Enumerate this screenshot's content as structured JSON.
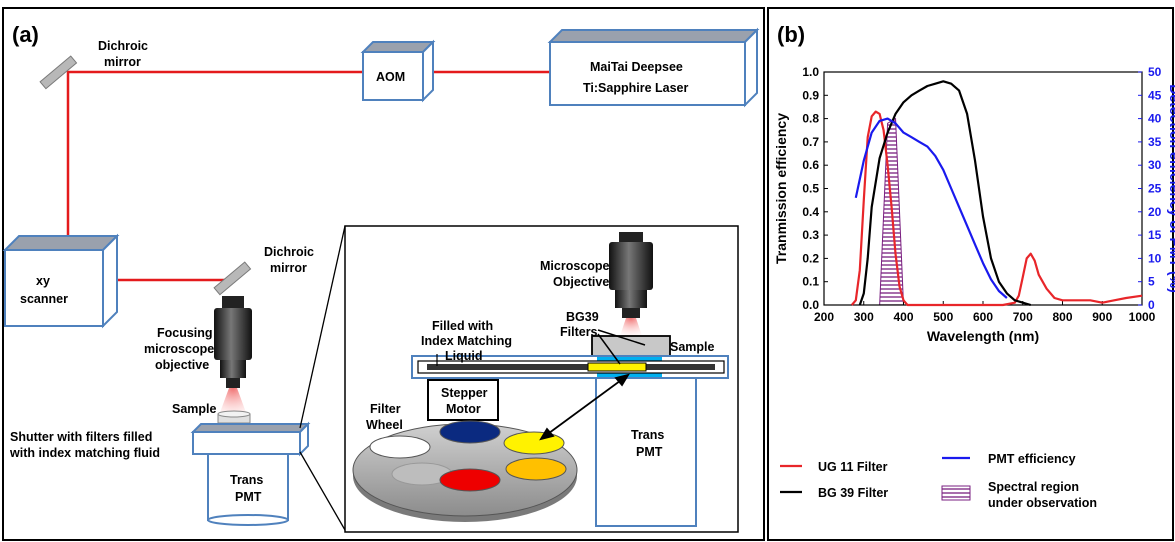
{
  "panel_a": {
    "title": "(a)",
    "labels": {
      "dichroic_top_1": "Dichroic",
      "dichroic_top_2": "mirror",
      "aom": "AOM",
      "laser_1": "MaiTai Deepsee",
      "laser_2": "Ti:Sapphire Laser",
      "xy_1": "xy",
      "xy_2": "scanner",
      "dichroic_mid_1": "Dichroic",
      "dichroic_mid_2": "mirror",
      "focusing_1": "Focusing",
      "focusing_2": "microscope",
      "focusing_3": "objective",
      "sample_left": "Sample",
      "shutter_1": "Shutter with filters filled",
      "shutter_2": "with index matching fluid",
      "trans_left_1": "Trans",
      "trans_left_2": "PMT",
      "micro_obj_1": "Microscope",
      "micro_obj_2": "Objective",
      "filled_1": "Filled with",
      "filled_2": "Index Matching",
      "filled_3": "Liquid",
      "bg39_1": "BG39",
      "bg39_2": "Filters",
      "sample_inset": "Sample",
      "stepper_1": "Stepper",
      "stepper_2": "Motor",
      "filter_wheel_1": "Filter",
      "filter_wheel_2": "Wheel",
      "trans_inset_1": "Trans",
      "trans_inset_2": "PMT"
    }
  },
  "panel_b": {
    "title": "(b)",
    "legend": {
      "ug11": "UG 11 Filter",
      "bg39": "BG 39 Filter",
      "pmt": "PMT efficiency",
      "region_1": "Spectral region",
      "region_2": "under observation"
    }
  },
  "colors": {
    "beam": "#e41a1c",
    "box_edge": "#4f81bd",
    "ug11": "#e8262a",
    "bg39": "#000000",
    "pmt": "#1a1aee",
    "region": "#7a1f80",
    "wheel_blue": "#0b2a80",
    "wheel_yellow": "#fff200",
    "wheel_red": "#ee0000",
    "wheel_orange": "#ffc000",
    "inset_blue": "#00b0f0"
  },
  "chart_data": {
    "type": "line",
    "xlabel": "Wavelength (nm)",
    "ylabel": "Tranmission efficiency",
    "y2label": "Detection efficiency of PMT (%)",
    "xlim": [
      200,
      1000
    ],
    "ylim": [
      0,
      1.0
    ],
    "y2lim": [
      0,
      50
    ],
    "xticks": [
      200,
      300,
      400,
      500,
      600,
      700,
      800,
      900,
      1000
    ],
    "yticks": [
      "0.0",
      "0.1",
      "0.2",
      "0.3",
      "0.4",
      "0.5",
      "0.6",
      "0.7",
      "0.8",
      "0.9",
      "1.0"
    ],
    "y2ticks": [
      0,
      5,
      10,
      15,
      20,
      25,
      30,
      35,
      40,
      45,
      50
    ],
    "series": [
      {
        "name": "UG 11 Filter",
        "axis": "left",
        "x": [
          270,
          280,
          290,
          300,
          310,
          320,
          330,
          340,
          350,
          360,
          370,
          380,
          390,
          400,
          410,
          600,
          650,
          680,
          690,
          700,
          710,
          720,
          730,
          740,
          760,
          780,
          800,
          830,
          870,
          900,
          930,
          960,
          1000
        ],
        "y": [
          0.0,
          0.02,
          0.15,
          0.45,
          0.72,
          0.81,
          0.83,
          0.82,
          0.75,
          0.6,
          0.42,
          0.22,
          0.08,
          0.02,
          0.0,
          0.0,
          0.0,
          0.01,
          0.04,
          0.12,
          0.2,
          0.22,
          0.19,
          0.13,
          0.07,
          0.03,
          0.02,
          0.02,
          0.02,
          0.01,
          0.02,
          0.03,
          0.04
        ]
      },
      {
        "name": "BG 39 Filter",
        "axis": "left",
        "x": [
          290,
          300,
          310,
          320,
          340,
          360,
          380,
          400,
          420,
          440,
          460,
          480,
          500,
          520,
          540,
          560,
          580,
          600,
          620,
          640,
          660,
          680,
          700,
          720
        ],
        "y": [
          0.0,
          0.05,
          0.2,
          0.42,
          0.63,
          0.74,
          0.82,
          0.87,
          0.9,
          0.92,
          0.94,
          0.95,
          0.96,
          0.95,
          0.92,
          0.82,
          0.62,
          0.38,
          0.2,
          0.1,
          0.05,
          0.02,
          0.01,
          0.0
        ]
      },
      {
        "name": "PMT efficiency",
        "axis": "right",
        "x": [
          280,
          300,
          320,
          340,
          360,
          380,
          400,
          420,
          440,
          460,
          480,
          500,
          520,
          540,
          560,
          580,
          600,
          620,
          640,
          660
        ],
        "y": [
          23,
          31,
          37,
          39.5,
          40,
          39,
          37,
          36,
          35,
          34,
          32,
          29,
          25,
          21,
          17,
          13,
          9,
          5.5,
          3,
          1.5
        ]
      }
    ],
    "region": {
      "name": "Spectral region under observation",
      "x": [
        340,
        360,
        380,
        400
      ],
      "y": [
        0.0,
        0.78,
        0.8,
        0.0
      ]
    }
  }
}
